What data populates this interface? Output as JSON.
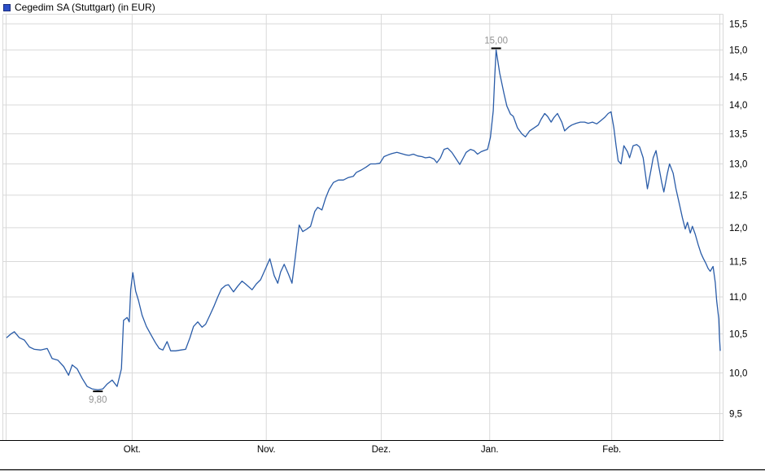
{
  "header": {
    "title": "Cegedim SA (Stuttgart) (in EUR)",
    "marker_color": "#2b4fc8",
    "marker_border_color": "#1b2d7a"
  },
  "chart_data": {
    "type": "line",
    "title": "Cegedim SA (Stuttgart) (in EUR)",
    "currency": "EUR",
    "legend_position": "top-left",
    "grid": true,
    "colors": {
      "line": "#2a5ca8",
      "grid": "#d9d9d9",
      "axis": "#000000",
      "tick_label": "#000000",
      "annotation": "#949494",
      "annotation_tick": "#000000"
    },
    "y_axis": {
      "side": "right",
      "scale": "log",
      "min": 9.19,
      "max": 15.68,
      "ticks": [
        9.5,
        10.0,
        10.5,
        11.0,
        11.5,
        12.0,
        12.5,
        13.0,
        13.5,
        14.0,
        14.5,
        15.0,
        15.5
      ],
      "tick_labels": [
        "9,5",
        "10,0",
        "10,5",
        "11,0",
        "11,5",
        "12,0",
        "12,5",
        "13,0",
        "13,5",
        "14,0",
        "14,5",
        "15,0",
        "15,5"
      ]
    },
    "x_axis": {
      "months": [
        {
          "label": "Okt.",
          "t": 17.6
        },
        {
          "label": "Nov.",
          "t": 36.4
        },
        {
          "label": "Dez.",
          "t": 52.5
        },
        {
          "label": "Jan.",
          "t": 67.7
        },
        {
          "label": "Feb.",
          "t": 84.8
        }
      ]
    },
    "annotations": {
      "high": {
        "label": "15,00",
        "t": 68.6,
        "value": 15.0
      },
      "low": {
        "label": "9,80",
        "t": 12.8,
        "value": 9.8
      }
    },
    "series": [
      {
        "name": "Cegedim SA",
        "points": [
          [
            0,
            10.45
          ],
          [
            0.6,
            10.5
          ],
          [
            1.1,
            10.53
          ],
          [
            1.8,
            10.45
          ],
          [
            2.5,
            10.42
          ],
          [
            3.2,
            10.33
          ],
          [
            3.9,
            10.3
          ],
          [
            4.8,
            10.29
          ],
          [
            5.7,
            10.31
          ],
          [
            6.4,
            10.18
          ],
          [
            7.2,
            10.16
          ],
          [
            8,
            10.08
          ],
          [
            8.7,
            9.97
          ],
          [
            9.2,
            10.1
          ],
          [
            9.9,
            10.05
          ],
          [
            10.6,
            9.93
          ],
          [
            11.3,
            9.83
          ],
          [
            12,
            9.8
          ],
          [
            12.8,
            9.79
          ],
          [
            13.5,
            9.8
          ],
          [
            14.1,
            9.86
          ],
          [
            14.8,
            9.91
          ],
          [
            15.5,
            9.83
          ],
          [
            16.1,
            10.05
          ],
          [
            16.4,
            10.68
          ],
          [
            16.9,
            10.72
          ],
          [
            17.2,
            10.66
          ],
          [
            17.4,
            11.1
          ],
          [
            17.7,
            11.34
          ],
          [
            18.1,
            11.08
          ],
          [
            18.5,
            10.95
          ],
          [
            19,
            10.75
          ],
          [
            19.6,
            10.6
          ],
          [
            20.3,
            10.48
          ],
          [
            20.9,
            10.38
          ],
          [
            21.4,
            10.31
          ],
          [
            21.9,
            10.29
          ],
          [
            22.5,
            10.4
          ],
          [
            23,
            10.28
          ],
          [
            23.7,
            10.28
          ],
          [
            24.4,
            10.29
          ],
          [
            25.1,
            10.3
          ],
          [
            25.7,
            10.45
          ],
          [
            26.2,
            10.6
          ],
          [
            26.8,
            10.66
          ],
          [
            27.4,
            10.59
          ],
          [
            27.9,
            10.63
          ],
          [
            28.5,
            10.75
          ],
          [
            29.1,
            10.88
          ],
          [
            29.6,
            11
          ],
          [
            30.1,
            11.11
          ],
          [
            30.7,
            11.16
          ],
          [
            31.1,
            11.17
          ],
          [
            31.8,
            11.07
          ],
          [
            32.4,
            11.15
          ],
          [
            33,
            11.22
          ],
          [
            33.5,
            11.18
          ],
          [
            34.4,
            11.1
          ],
          [
            35,
            11.18
          ],
          [
            35.6,
            11.24
          ],
          [
            36.3,
            11.4
          ],
          [
            36.9,
            11.54
          ],
          [
            37.5,
            11.3
          ],
          [
            38,
            11.19
          ],
          [
            38.4,
            11.35
          ],
          [
            38.9,
            11.46
          ],
          [
            39.5,
            11.32
          ],
          [
            40,
            11.19
          ],
          [
            40.5,
            11.6
          ],
          [
            41,
            12.04
          ],
          [
            41.5,
            11.94
          ],
          [
            42.1,
            11.98
          ],
          [
            42.6,
            12.02
          ],
          [
            43.2,
            12.25
          ],
          [
            43.6,
            12.31
          ],
          [
            44.2,
            12.27
          ],
          [
            44.7,
            12.45
          ],
          [
            45.2,
            12.59
          ],
          [
            45.8,
            12.7
          ],
          [
            46.5,
            12.74
          ],
          [
            47.2,
            12.74
          ],
          [
            47.9,
            12.78
          ],
          [
            48.6,
            12.8
          ],
          [
            49,
            12.86
          ],
          [
            49.7,
            12.9
          ],
          [
            50.4,
            12.95
          ],
          [
            51,
            13
          ],
          [
            51.7,
            13
          ],
          [
            52.3,
            13.01
          ],
          [
            52.9,
            13.12
          ],
          [
            53.5,
            13.15
          ],
          [
            54,
            13.17
          ],
          [
            54.7,
            13.19
          ],
          [
            55.3,
            13.17
          ],
          [
            55.9,
            13.15
          ],
          [
            56.4,
            13.14
          ],
          [
            57,
            13.16
          ],
          [
            57.6,
            13.13
          ],
          [
            58.2,
            13.12
          ],
          [
            58.7,
            13.1
          ],
          [
            59.3,
            13.11
          ],
          [
            59.9,
            13.08
          ],
          [
            60.3,
            13.02
          ],
          [
            60.8,
            13.1
          ],
          [
            61.3,
            13.24
          ],
          [
            61.8,
            13.26
          ],
          [
            62.4,
            13.19
          ],
          [
            62.9,
            13.1
          ],
          [
            63.5,
            12.99
          ],
          [
            64,
            13.1
          ],
          [
            64.4,
            13.19
          ],
          [
            65,
            13.24
          ],
          [
            65.5,
            13.22
          ],
          [
            66,
            13.16
          ],
          [
            66.5,
            13.2
          ],
          [
            66.9,
            13.22
          ],
          [
            67.4,
            13.24
          ],
          [
            67.8,
            13.44
          ],
          [
            68.2,
            13.9
          ],
          [
            68.4,
            14.5
          ],
          [
            68.6,
            15
          ],
          [
            69.1,
            14.57
          ],
          [
            69.7,
            14.2
          ],
          [
            70.1,
            13.98
          ],
          [
            70.6,
            13.84
          ],
          [
            71,
            13.8
          ],
          [
            71.6,
            13.6
          ],
          [
            72.2,
            13.5
          ],
          [
            72.7,
            13.45
          ],
          [
            73.3,
            13.55
          ],
          [
            73.9,
            13.6
          ],
          [
            74.5,
            13.65
          ],
          [
            74.9,
            13.75
          ],
          [
            75.4,
            13.85
          ],
          [
            75.8,
            13.8
          ],
          [
            76.3,
            13.7
          ],
          [
            76.7,
            13.78
          ],
          [
            77.2,
            13.85
          ],
          [
            77.8,
            13.7
          ],
          [
            78.2,
            13.55
          ],
          [
            78.8,
            13.62
          ],
          [
            79.2,
            13.65
          ],
          [
            79.8,
            13.68
          ],
          [
            80.4,
            13.7
          ],
          [
            81,
            13.7
          ],
          [
            81.5,
            13.68
          ],
          [
            82.1,
            13.7
          ],
          [
            82.7,
            13.67
          ],
          [
            83.2,
            13.72
          ],
          [
            83.8,
            13.78
          ],
          [
            84.3,
            13.85
          ],
          [
            84.7,
            13.88
          ],
          [
            85.1,
            13.6
          ],
          [
            85.4,
            13.3
          ],
          [
            85.7,
            13.05
          ],
          [
            86.1,
            13
          ],
          [
            86.5,
            13.3
          ],
          [
            87,
            13.2
          ],
          [
            87.3,
            13.1
          ],
          [
            87.8,
            13.3
          ],
          [
            88.3,
            13.32
          ],
          [
            88.7,
            13.28
          ],
          [
            89.2,
            13.1
          ],
          [
            89.5,
            12.85
          ],
          [
            89.8,
            12.6
          ],
          [
            90.3,
            12.9
          ],
          [
            90.6,
            13.1
          ],
          [
            91,
            13.22
          ],
          [
            91.4,
            12.95
          ],
          [
            91.8,
            12.7
          ],
          [
            92.1,
            12.55
          ],
          [
            92.6,
            12.85
          ],
          [
            92.9,
            13
          ],
          [
            93.4,
            12.85
          ],
          [
            93.8,
            12.6
          ],
          [
            94.3,
            12.35
          ],
          [
            94.7,
            12.15
          ],
          [
            95.1,
            11.98
          ],
          [
            95.4,
            12.08
          ],
          [
            95.8,
            11.92
          ],
          [
            96.1,
            12.02
          ],
          [
            96.5,
            11.9
          ],
          [
            96.9,
            11.75
          ],
          [
            97.3,
            11.62
          ],
          [
            97.6,
            11.55
          ],
          [
            98,
            11.47
          ],
          [
            98.3,
            11.4
          ],
          [
            98.6,
            11.36
          ],
          [
            99,
            11.43
          ],
          [
            99.3,
            11.2
          ],
          [
            99.5,
            10.95
          ],
          [
            99.8,
            10.7
          ],
          [
            99.9,
            10.45
          ],
          [
            100,
            10.28
          ]
        ]
      }
    ]
  }
}
